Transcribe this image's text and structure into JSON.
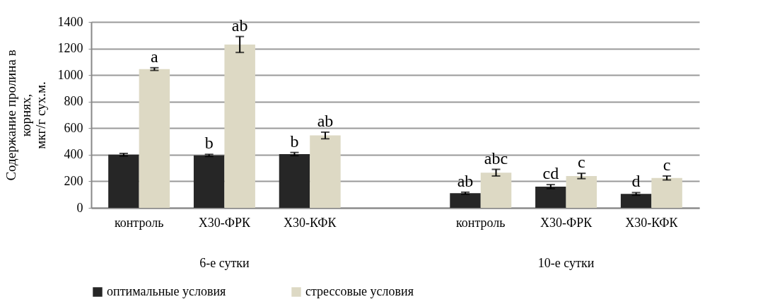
{
  "chart_data": {
    "type": "bar",
    "ylabel": "Содержание пролина в\nкорнях,\nмкг/г  сух.м.",
    "categories": [
      "контроль",
      "Х30-ФРК",
      "Х30-КФК",
      null,
      "контроль",
      "Х30-ФРК",
      "Х30-КФК"
    ],
    "series": [
      {
        "name": "оптимальные условия",
        "color": "#262626",
        "values": [
          400,
          395,
          405,
          null,
          110,
          160,
          105
        ],
        "errors": [
          10,
          8,
          12,
          null,
          8,
          15,
          10
        ],
        "value_labels": [
          null,
          "b",
          "b",
          null,
          "ab",
          "cd",
          "d"
        ]
      },
      {
        "name": "стрессовые условия",
        "color": "#ddd9c4",
        "values": [
          1045,
          1230,
          545,
          null,
          265,
          240,
          225
        ],
        "errors": [
          10,
          60,
          25,
          null,
          25,
          20,
          15
        ],
        "value_labels": [
          "a",
          "ab",
          "ab",
          null,
          "abc",
          "c",
          "c"
        ]
      }
    ],
    "annotations": [
      "6-е сутки",
      "10-е сутки"
    ],
    "ylim": [
      0,
      1400
    ],
    "yticks": [
      0,
      200,
      400,
      600,
      800,
      1000,
      1200,
      1400
    ],
    "grid": "y",
    "legend": "bottom"
  }
}
